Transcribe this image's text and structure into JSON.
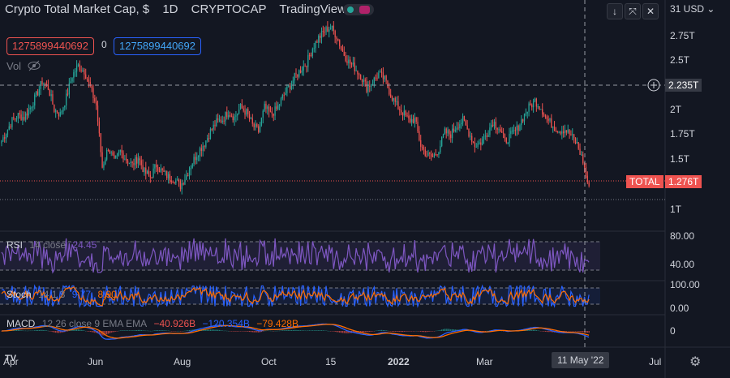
{
  "header": {
    "title": "Crypto Total Market Cap, $",
    "interval": "1D",
    "exchange": "CRYPTOCAP",
    "source": "TradingView"
  },
  "values": {
    "red": "1275899440692",
    "zero": "0",
    "blue": "1275899440692"
  },
  "volume_label": "Vol",
  "toolbar": {
    "currency": "31 USD"
  },
  "price_axis": {
    "ticks": [
      "2.75T",
      "2.5T",
      "2T",
      "1.75T",
      "1.5T",
      "1T"
    ],
    "crosshair_price": "2.235T",
    "last_label": "TOTAL",
    "last_price": "1.276T"
  },
  "rsi": {
    "name": "RSI",
    "params": "14 close",
    "value": "24.45",
    "ticks": [
      "80.00",
      "40.00"
    ]
  },
  "stoch": {
    "name": "Stoch",
    "params": "14 1 3",
    "k": "9.77",
    "d": "8.90",
    "ticks": [
      "100.00",
      "0.00"
    ]
  },
  "macd": {
    "name": "MACD",
    "params": "12 26 close 9 EMA EMA",
    "hist": "−40.926B",
    "macd_line": "−120.354B",
    "signal": "−79.428B",
    "ticks": [
      "0"
    ]
  },
  "time_axis": {
    "labels": [
      "Apr",
      "Jun",
      "Aug",
      "Oct",
      "15",
      "2022",
      "Mar",
      "Jul"
    ],
    "crosshair_date": "11 May '22"
  },
  "logo_text": "TV",
  "colors": {
    "background": "#131722",
    "up": "#26a69a",
    "down": "#ef5350",
    "rsi": "#7e57c2",
    "stoch_k": "#2962ff",
    "stoch_d": "#ff6d00",
    "macd": "#2962ff",
    "signal": "#ff6d00"
  },
  "chart_data": {
    "type": "candlestick",
    "unit": "T USD",
    "ylim": [
      0.88,
      3.1
    ],
    "closes": [
      1.74,
      1.85,
      1.97,
      2.02,
      2.0,
      2.1,
      2.22,
      2.36,
      2.3,
      2.08,
      2.03,
      2.2,
      2.42,
      2.52,
      2.47,
      2.3,
      2.12,
      1.5,
      1.7,
      1.55,
      1.66,
      1.58,
      1.52,
      1.6,
      1.45,
      1.4,
      1.52,
      1.45,
      1.4,
      1.38,
      1.31,
      1.42,
      1.55,
      1.66,
      1.74,
      1.86,
      1.95,
      1.98,
      2.06,
      2.0,
      2.1,
      2.05,
      1.92,
      1.86,
      2.1,
      2.03,
      2.08,
      2.2,
      2.3,
      2.4,
      2.48,
      2.55,
      2.7,
      2.8,
      2.87,
      2.91,
      2.82,
      2.66,
      2.56,
      2.5,
      2.42,
      2.3,
      2.36,
      2.44,
      2.38,
      2.23,
      2.12,
      2.05,
      1.97,
      1.98,
      1.72,
      1.62,
      1.6,
      1.68,
      1.85,
      1.83,
      1.92,
      1.97,
      1.85,
      1.72,
      1.75,
      1.84,
      1.96,
      1.9,
      1.76,
      1.82,
      1.88,
      2.0,
      2.1,
      2.17,
      2.1,
      1.98,
      1.92,
      1.87,
      1.88,
      1.82,
      1.73,
      1.56,
      1.28
    ]
  }
}
